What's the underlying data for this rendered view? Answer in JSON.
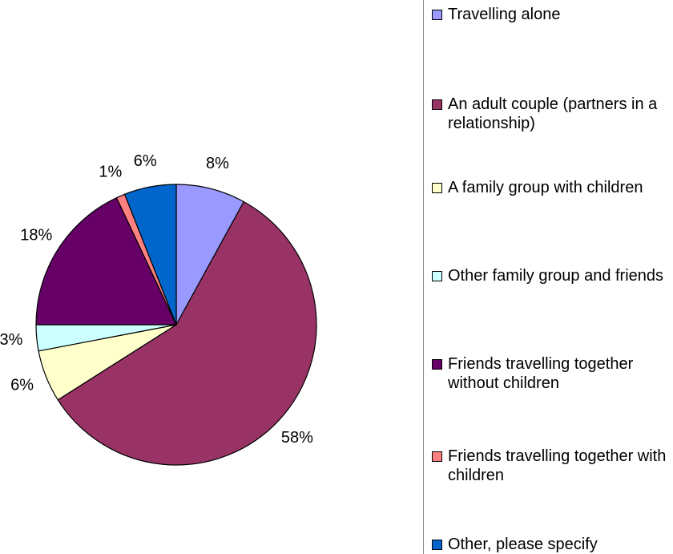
{
  "chart_data": {
    "type": "pie",
    "categories": [
      "Travelling alone",
      "An adult couple (partners in a relationship)",
      "A family group with children",
      "Other family group and friends",
      "Friends travelling together without children",
      "Friends travelling together with children",
      "Other, please specify"
    ],
    "values": [
      8,
      58,
      6,
      3,
      18,
      1,
      6
    ],
    "value_labels": [
      "8%",
      "58%",
      "6%",
      "3%",
      "18%",
      "1%",
      "6%"
    ],
    "colors": [
      "#9999ff",
      "#993366",
      "#ffffcc",
      "#ccffff",
      "#660066",
      "#ff8080",
      "#0066cc"
    ],
    "legend": "right"
  }
}
